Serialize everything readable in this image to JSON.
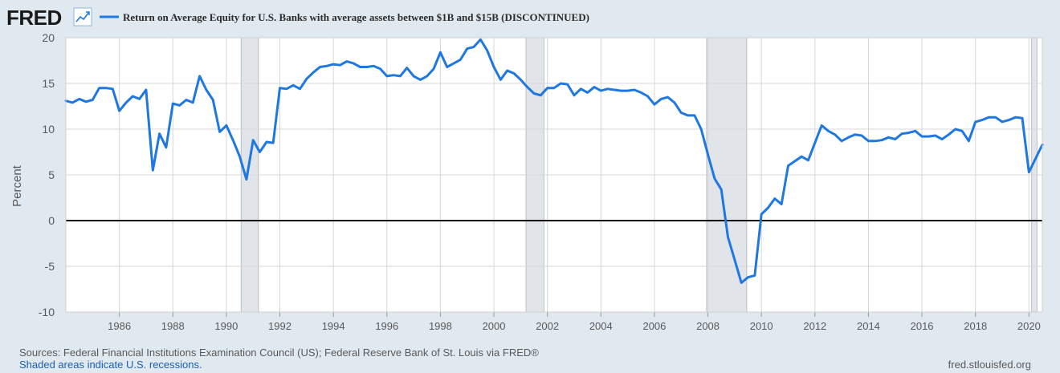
{
  "header": {
    "logo_text": "FRED",
    "logo_icon": "line-chart-icon",
    "series_title": "Return on Average Equity for U.S. Banks with average assets between $1B and $15B (DISCONTINUED)"
  },
  "footer": {
    "sources": "Sources: Federal Financial Institutions Examination Council (US); Federal Reserve Bank of St. Louis via FRED®",
    "recession_note": "Shaded areas indicate U.S. recessions.",
    "site": "fred.stlouisfed.org"
  },
  "colors": {
    "line": "#1f77e0",
    "recession": "#e1e5ea",
    "grid": "#d7d7d7",
    "zero_line": "#000000",
    "text": "#595959"
  },
  "chart_data": {
    "type": "line",
    "ylabel": "Percent",
    "xlabel": "",
    "ylim": [
      -10,
      20
    ],
    "xlim": [
      1984.0,
      2020.5
    ],
    "y_ticks": [
      -10,
      -5,
      0,
      5,
      10,
      15,
      20
    ],
    "x_ticks": [
      1986,
      1988,
      1990,
      1992,
      1994,
      1996,
      1998,
      2000,
      2002,
      2004,
      2006,
      2008,
      2010,
      2012,
      2014,
      2016,
      2018,
      2020
    ],
    "grid": true,
    "recessions": [
      [
        1990.55,
        1991.2
      ],
      [
        2001.2,
        2001.87
      ],
      [
        2007.95,
        2009.45
      ],
      [
        2020.1,
        2020.3
      ]
    ],
    "series": [
      {
        "name": "Return on Average Equity for U.S. Banks with average assets between $1B and $15B (DISCONTINUED)",
        "points": [
          [
            1984.0,
            13.1
          ],
          [
            1984.25,
            12.9
          ],
          [
            1984.5,
            13.3
          ],
          [
            1984.75,
            13.0
          ],
          [
            1985.0,
            13.2
          ],
          [
            1985.25,
            14.5
          ],
          [
            1985.5,
            14.5
          ],
          [
            1985.75,
            14.4
          ],
          [
            1986.0,
            12.0
          ],
          [
            1986.25,
            12.9
          ],
          [
            1986.5,
            13.6
          ],
          [
            1986.75,
            13.3
          ],
          [
            1987.0,
            14.3
          ],
          [
            1987.25,
            5.5
          ],
          [
            1987.5,
            9.5
          ],
          [
            1987.75,
            8.0
          ],
          [
            1988.0,
            12.8
          ],
          [
            1988.25,
            12.6
          ],
          [
            1988.5,
            13.2
          ],
          [
            1988.75,
            12.9
          ],
          [
            1989.0,
            15.8
          ],
          [
            1989.25,
            14.3
          ],
          [
            1989.5,
            13.2
          ],
          [
            1989.75,
            9.7
          ],
          [
            1990.0,
            10.4
          ],
          [
            1990.25,
            8.8
          ],
          [
            1990.5,
            7.0
          ],
          [
            1990.75,
            4.5
          ],
          [
            1991.0,
            8.8
          ],
          [
            1991.25,
            7.5
          ],
          [
            1991.5,
            8.6
          ],
          [
            1991.75,
            8.5
          ],
          [
            1992.0,
            14.5
          ],
          [
            1992.25,
            14.4
          ],
          [
            1992.5,
            14.8
          ],
          [
            1992.75,
            14.4
          ],
          [
            1993.0,
            15.5
          ],
          [
            1993.25,
            16.2
          ],
          [
            1993.5,
            16.8
          ],
          [
            1993.75,
            16.9
          ],
          [
            1994.0,
            17.1
          ],
          [
            1994.25,
            17.0
          ],
          [
            1994.5,
            17.4
          ],
          [
            1994.75,
            17.2
          ],
          [
            1995.0,
            16.8
          ],
          [
            1995.25,
            16.8
          ],
          [
            1995.5,
            16.9
          ],
          [
            1995.75,
            16.6
          ],
          [
            1996.0,
            15.8
          ],
          [
            1996.25,
            15.9
          ],
          [
            1996.5,
            15.8
          ],
          [
            1996.75,
            16.7
          ],
          [
            1997.0,
            15.8
          ],
          [
            1997.25,
            15.4
          ],
          [
            1997.5,
            15.8
          ],
          [
            1997.75,
            16.6
          ],
          [
            1998.0,
            18.4
          ],
          [
            1998.25,
            16.8
          ],
          [
            1998.5,
            17.2
          ],
          [
            1998.75,
            17.6
          ],
          [
            1999.0,
            18.8
          ],
          [
            1999.25,
            19.0
          ],
          [
            1999.5,
            19.8
          ],
          [
            1999.75,
            18.6
          ],
          [
            2000.0,
            16.8
          ],
          [
            2000.25,
            15.4
          ],
          [
            2000.5,
            16.4
          ],
          [
            2000.75,
            16.1
          ],
          [
            2001.0,
            15.4
          ],
          [
            2001.25,
            14.6
          ],
          [
            2001.5,
            13.9
          ],
          [
            2001.75,
            13.7
          ],
          [
            2002.0,
            14.5
          ],
          [
            2002.25,
            14.5
          ],
          [
            2002.5,
            15.0
          ],
          [
            2002.75,
            14.9
          ],
          [
            2003.0,
            13.7
          ],
          [
            2003.25,
            14.4
          ],
          [
            2003.5,
            14.0
          ],
          [
            2003.75,
            14.6
          ],
          [
            2004.0,
            14.2
          ],
          [
            2004.25,
            14.4
          ],
          [
            2004.5,
            14.3
          ],
          [
            2004.75,
            14.2
          ],
          [
            2005.0,
            14.2
          ],
          [
            2005.25,
            14.3
          ],
          [
            2005.5,
            14.0
          ],
          [
            2005.75,
            13.6
          ],
          [
            2006.0,
            12.7
          ],
          [
            2006.25,
            13.3
          ],
          [
            2006.5,
            13.5
          ],
          [
            2006.75,
            12.9
          ],
          [
            2007.0,
            11.8
          ],
          [
            2007.25,
            11.5
          ],
          [
            2007.5,
            11.5
          ],
          [
            2007.75,
            10.0
          ],
          [
            2008.0,
            7.2
          ],
          [
            2008.25,
            4.6
          ],
          [
            2008.5,
            3.4
          ],
          [
            2008.75,
            -1.8
          ],
          [
            2009.0,
            -4.3
          ],
          [
            2009.25,
            -6.8
          ],
          [
            2009.5,
            -6.2
          ],
          [
            2009.75,
            -6.0
          ],
          [
            2010.0,
            0.7
          ],
          [
            2010.25,
            1.4
          ],
          [
            2010.5,
            2.4
          ],
          [
            2010.75,
            1.8
          ],
          [
            2011.0,
            6.0
          ],
          [
            2011.25,
            6.5
          ],
          [
            2011.5,
            7.0
          ],
          [
            2011.75,
            6.6
          ],
          [
            2012.0,
            8.5
          ],
          [
            2012.25,
            10.4
          ],
          [
            2012.5,
            9.8
          ],
          [
            2012.75,
            9.4
          ],
          [
            2013.0,
            8.7
          ],
          [
            2013.25,
            9.1
          ],
          [
            2013.5,
            9.4
          ],
          [
            2013.75,
            9.3
          ],
          [
            2014.0,
            8.7
          ],
          [
            2014.25,
            8.7
          ],
          [
            2014.5,
            8.8
          ],
          [
            2014.75,
            9.1
          ],
          [
            2015.0,
            8.9
          ],
          [
            2015.25,
            9.5
          ],
          [
            2015.5,
            9.6
          ],
          [
            2015.75,
            9.8
          ],
          [
            2016.0,
            9.2
          ],
          [
            2016.25,
            9.2
          ],
          [
            2016.5,
            9.3
          ],
          [
            2016.75,
            8.9
          ],
          [
            2017.0,
            9.4
          ],
          [
            2017.25,
            10.0
          ],
          [
            2017.5,
            9.8
          ],
          [
            2017.75,
            8.7
          ],
          [
            2018.0,
            10.8
          ],
          [
            2018.25,
            11.0
          ],
          [
            2018.5,
            11.3
          ],
          [
            2018.75,
            11.3
          ],
          [
            2019.0,
            10.8
          ],
          [
            2019.25,
            11.0
          ],
          [
            2019.5,
            11.3
          ],
          [
            2019.75,
            11.2
          ],
          [
            2020.0,
            5.3
          ],
          [
            2020.25,
            6.8
          ],
          [
            2020.5,
            8.3
          ]
        ]
      }
    ]
  }
}
